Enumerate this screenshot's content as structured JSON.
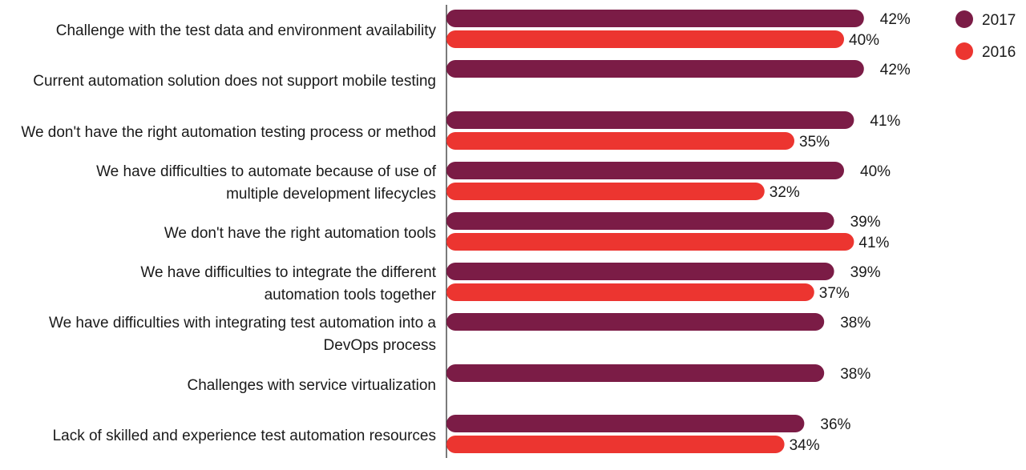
{
  "chart_data": {
    "type": "bar",
    "orientation": "horizontal",
    "title": "",
    "xlabel": "",
    "ylabel": "",
    "xlim": [
      0,
      50
    ],
    "grid": false,
    "legend": {
      "placement": "top-right"
    },
    "value_suffix": "%",
    "colors": {
      "2017": "#7b1c46",
      "2016": "#ec3530"
    },
    "categories": [
      [
        "Challenge with the test data and environment availability"
      ],
      [
        "Current automation solution does not support mobile testing"
      ],
      [
        "We don't have the right automation testing process or method"
      ],
      [
        "We have difficulties to automate because of use of",
        "multiple development lifecycles"
      ],
      [
        "We don't have the right automation tools"
      ],
      [
        "We have difficulties to integrate the different",
        "automation tools together"
      ],
      [
        "We have difficulties with integrating test automation into a",
        "DevOps process"
      ],
      [
        "Challenges with service virtualization"
      ],
      [
        "Lack of skilled and experience test automation resources"
      ]
    ],
    "series": [
      {
        "name": "2017",
        "values": [
          42,
          42,
          41,
          40,
          39,
          39,
          38,
          38,
          36
        ]
      },
      {
        "name": "2016",
        "values": [
          40,
          null,
          35,
          32,
          41,
          37,
          null,
          null,
          34
        ]
      }
    ]
  }
}
